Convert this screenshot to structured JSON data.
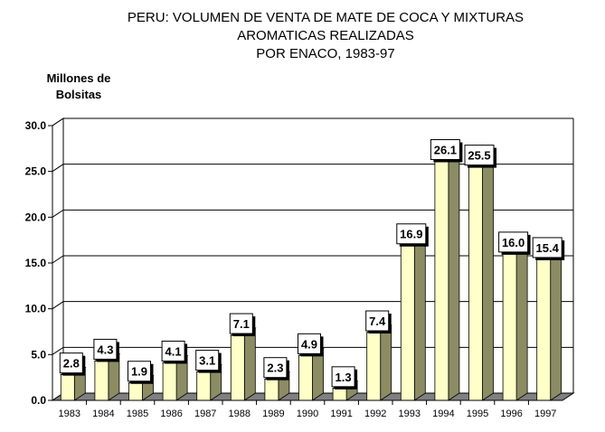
{
  "chart_data": {
    "type": "bar",
    "title_lines": [
      "PERU: VOLUMEN DE VENTA DE MATE DE COCA Y MIXTURAS",
      "AROMATICAS REALIZADAS",
      "POR ENACO, 1983-97"
    ],
    "ylabel_lines": [
      "Millones de",
      "Bolsitas"
    ],
    "xlabel": "",
    "categories": [
      "1983",
      "1984",
      "1985",
      "1986",
      "1987",
      "1988",
      "1989",
      "1990",
      "1991",
      "1992",
      "1993",
      "1994",
      "1995",
      "1996",
      "1997"
    ],
    "values": [
      2.8,
      4.3,
      1.9,
      4.1,
      3.1,
      7.1,
      2.3,
      4.9,
      1.3,
      7.4,
      16.9,
      26.1,
      25.5,
      16.0,
      15.4
    ],
    "data_labels": [
      "2.8",
      "4.3",
      "1.9",
      "4.1",
      "3.1",
      "7.1",
      "2.3",
      "4.9",
      "1.3",
      "7.4",
      "16.9",
      "26.1",
      "25.5",
      "16.0",
      "15.4"
    ],
    "ylim": [
      0,
      30
    ],
    "yticks": [
      "0.0",
      "5.0",
      "10.0",
      "15.0",
      "20.0",
      "25.0",
      "30.0"
    ],
    "grid": true,
    "legend": "none",
    "colors": {
      "bar_front": "#ffffc8",
      "bar_side": "#8c8c64",
      "floor": "#808080",
      "wall": "#ffffff",
      "grid": "#000000"
    }
  }
}
